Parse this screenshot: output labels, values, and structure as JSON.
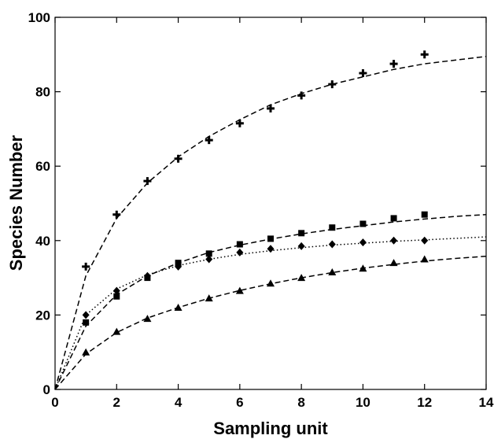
{
  "chart_data": {
    "type": "scatter",
    "title": "",
    "xlabel": "Sampling unit",
    "ylabel": "Species Number",
    "xlim": [
      0,
      14
    ],
    "ylim": [
      0,
      100
    ],
    "xticks": [
      0,
      2,
      4,
      6,
      8,
      10,
      12,
      14
    ],
    "yticks": [
      0,
      20,
      40,
      60,
      80,
      100
    ],
    "grid": false,
    "legend": "none",
    "series": [
      {
        "marker": "plus",
        "line_style": "dashed",
        "x": [
          1,
          2,
          3,
          4,
          5,
          6,
          7,
          8,
          9,
          10,
          11,
          12
        ],
        "y": [
          33,
          47,
          56,
          62,
          67,
          71.5,
          75.5,
          79,
          82,
          85,
          87.5,
          90
        ],
        "fit": [
          [
            0,
            0
          ],
          [
            1,
            30.5
          ],
          [
            2,
            46
          ],
          [
            3,
            55.5
          ],
          [
            4,
            62.5
          ],
          [
            5,
            68
          ],
          [
            6,
            72.5
          ],
          [
            7,
            76.5
          ],
          [
            8,
            79.5
          ],
          [
            9,
            82
          ],
          [
            10,
            84
          ],
          [
            11,
            86
          ],
          [
            12,
            87.5
          ],
          [
            13,
            88.5
          ],
          [
            14,
            89.5
          ]
        ]
      },
      {
        "marker": "square",
        "line_style": "dashed",
        "x": [
          1,
          2,
          3,
          4,
          5,
          6,
          7,
          8,
          9,
          10,
          11,
          12
        ],
        "y": [
          18,
          25,
          30,
          34,
          36.5,
          39,
          40.5,
          42,
          43.5,
          44.5,
          46,
          47
        ],
        "fit": [
          [
            0,
            0
          ],
          [
            1,
            17
          ],
          [
            2,
            25.5
          ],
          [
            3,
            30.5
          ],
          [
            4,
            34
          ],
          [
            5,
            36.8
          ],
          [
            6,
            38.8
          ],
          [
            7,
            40.4
          ],
          [
            8,
            41.8
          ],
          [
            9,
            43
          ],
          [
            10,
            44
          ],
          [
            11,
            45
          ],
          [
            12,
            45.8
          ],
          [
            13,
            46.5
          ],
          [
            14,
            47
          ]
        ]
      },
      {
        "marker": "diamond",
        "line_style": "dotted",
        "x": [
          1,
          2,
          3,
          4,
          5,
          6,
          7,
          8,
          9,
          10,
          11,
          12
        ],
        "y": [
          20,
          26.5,
          30.5,
          33,
          35,
          36.8,
          37.8,
          38.5,
          39,
          39.5,
          40,
          40
        ],
        "fit": [
          [
            0,
            0
          ],
          [
            1,
            20
          ],
          [
            2,
            27
          ],
          [
            3,
            30.8
          ],
          [
            4,
            33.3
          ],
          [
            5,
            35
          ],
          [
            6,
            36.3
          ],
          [
            7,
            37.3
          ],
          [
            8,
            38.1
          ],
          [
            9,
            38.8
          ],
          [
            10,
            39.3
          ],
          [
            11,
            39.8
          ],
          [
            12,
            40.2
          ],
          [
            13,
            40.6
          ],
          [
            14,
            41
          ]
        ]
      },
      {
        "marker": "triangle",
        "line_style": "dashed",
        "x": [
          1,
          2,
          3,
          4,
          5,
          6,
          7,
          8,
          9,
          10,
          11,
          12
        ],
        "y": [
          10,
          15.5,
          19,
          22,
          24.5,
          26.5,
          28.5,
          30,
          31.5,
          32.5,
          34,
          35
        ],
        "fit": [
          [
            0,
            0
          ],
          [
            1,
            9.5
          ],
          [
            2,
            15.3
          ],
          [
            3,
            19.2
          ],
          [
            4,
            22
          ],
          [
            5,
            24.5
          ],
          [
            6,
            26.6
          ],
          [
            7,
            28.4
          ],
          [
            8,
            30
          ],
          [
            9,
            31.4
          ],
          [
            10,
            32.6
          ],
          [
            11,
            33.6
          ],
          [
            12,
            34.5
          ],
          [
            13,
            35.2
          ],
          [
            14,
            35.8
          ]
        ]
      }
    ]
  }
}
